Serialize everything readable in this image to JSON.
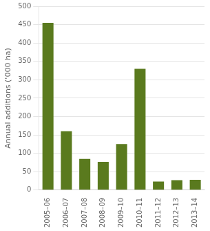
{
  "chart_data": {
    "type": "bar",
    "categories": [
      "2005–06",
      "2006–07",
      "2007–08",
      "2008–09",
      "2009–10",
      "2010–11",
      "2011–12",
      "2012–13",
      "2013–14"
    ],
    "values": [
      455,
      160,
      85,
      77,
      125,
      330,
      23,
      27,
      28
    ],
    "color": "#5a7a1e",
    "ylabel": "Annual additions ('000 ha)",
    "ylim": [
      0,
      500
    ],
    "yticks": [
      0,
      50,
      100,
      150,
      200,
      250,
      300,
      350,
      400,
      450,
      500
    ],
    "grid": true
  }
}
